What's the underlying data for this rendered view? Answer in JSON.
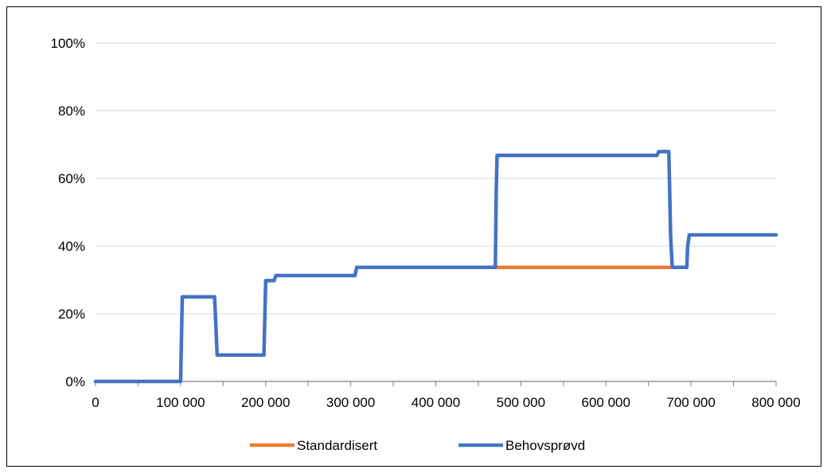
{
  "chart_data": {
    "type": "line",
    "title": "",
    "xlabel": "",
    "ylabel": "",
    "xlim": [
      0,
      800000
    ],
    "ylim": [
      0,
      100
    ],
    "x_ticks": [
      {
        "value": 0,
        "label": "0"
      },
      {
        "value": 100000,
        "label": "100 000"
      },
      {
        "value": 200000,
        "label": "200 000"
      },
      {
        "value": 300000,
        "label": "300 000"
      },
      {
        "value": 400000,
        "label": "400 000"
      },
      {
        "value": 500000,
        "label": "500 000"
      },
      {
        "value": 600000,
        "label": "600 000"
      },
      {
        "value": 700000,
        "label": "700 000"
      },
      {
        "value": 800000,
        "label": "800 000"
      }
    ],
    "x_minor_ticks": [
      50000,
      150000,
      250000,
      350000,
      450000,
      550000,
      650000,
      750000
    ],
    "y_ticks": [
      {
        "value": 0,
        "label": "0%"
      },
      {
        "value": 20,
        "label": "20%"
      },
      {
        "value": 40,
        "label": "40%"
      },
      {
        "value": 60,
        "label": "60%"
      },
      {
        "value": 80,
        "label": "80%"
      },
      {
        "value": 100,
        "label": "100%"
      }
    ],
    "grid": "horizontal",
    "legend": "bottom",
    "series": [
      {
        "name": "Standardisert",
        "color": "#ED7D31",
        "x": [
          470000,
          675000
        ],
        "y": [
          33.7,
          33.7
        ]
      },
      {
        "name": "Behovsprøvd",
        "color": "#4472C4",
        "x": [
          0,
          100000,
          102000,
          140000,
          143000,
          198000,
          200000,
          210000,
          212000,
          305000,
          307000,
          470000,
          471000,
          472000,
          660000,
          662000,
          674000,
          676000,
          678000,
          695000,
          696000,
          698000,
          800000
        ],
        "y": [
          0,
          0,
          25,
          25,
          7.8,
          7.8,
          29.8,
          29.8,
          31.3,
          31.3,
          33.7,
          33.7,
          56,
          66.8,
          66.8,
          67.9,
          67.9,
          43,
          33.7,
          33.7,
          40,
          43.3,
          43.3
        ]
      }
    ]
  }
}
